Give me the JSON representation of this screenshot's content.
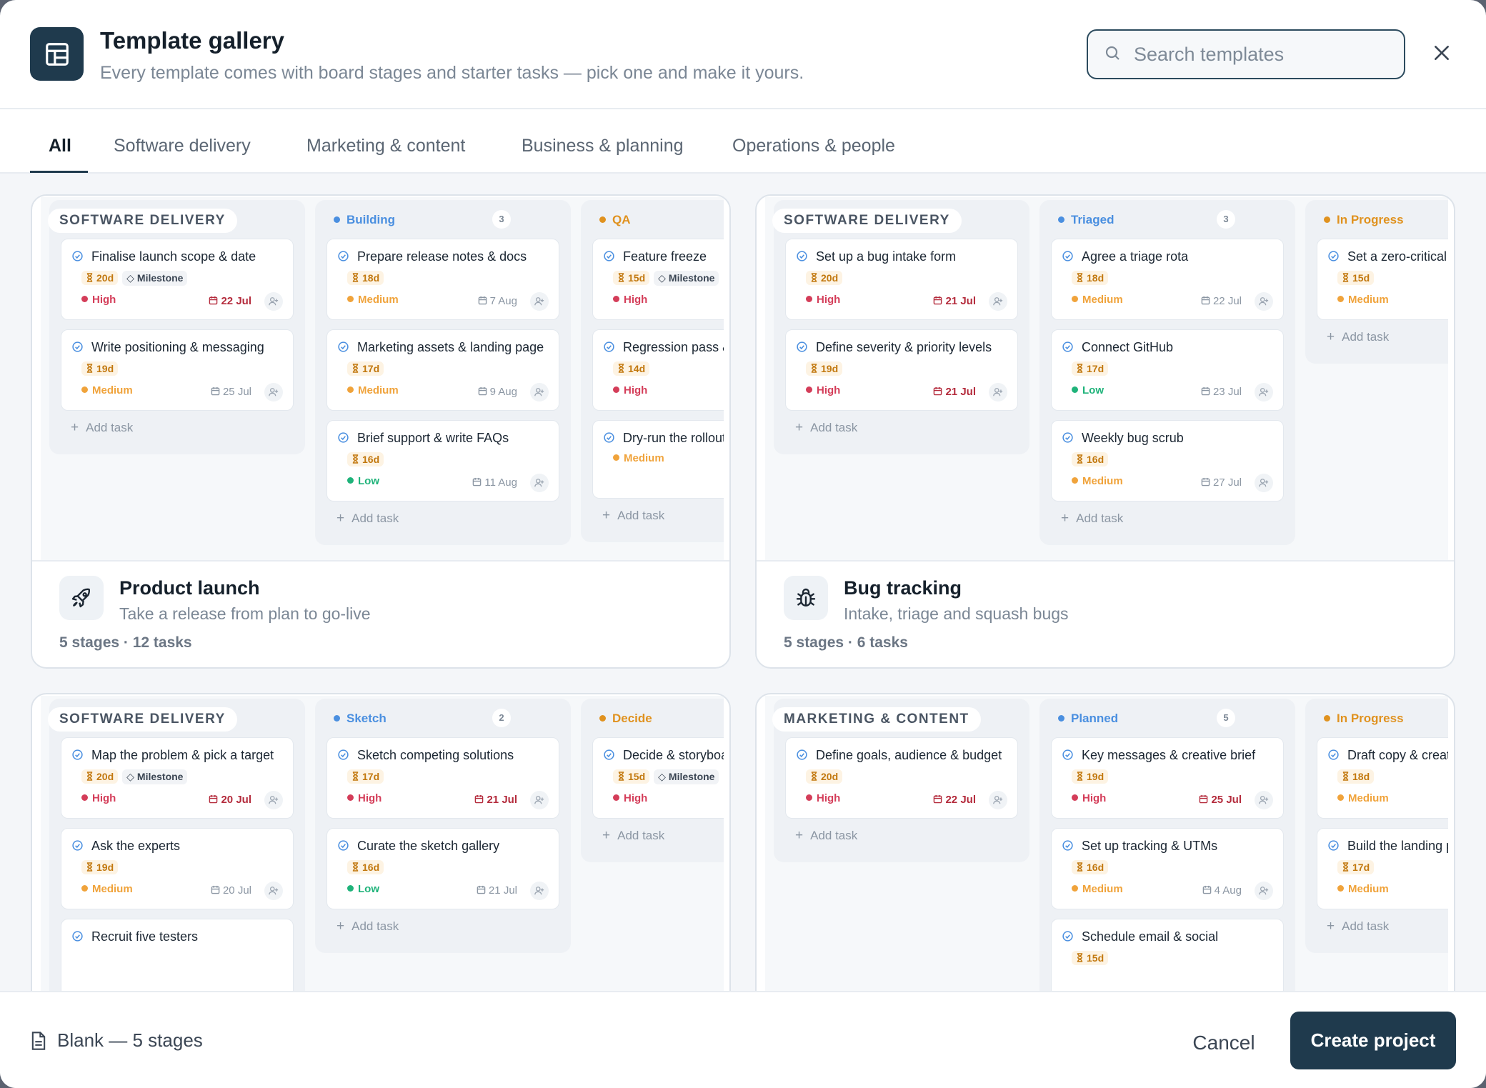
{
  "header": {
    "title": "Template gallery",
    "subtitle": "Every template comes with board stages and starter tasks — pick one and make it yours.",
    "search_placeholder": "Search templates"
  },
  "tabs": [
    "All",
    "Software delivery",
    "Marketing & content",
    "Business & planning",
    "Operations & people"
  ],
  "colors": {
    "accent": "#1f3a4d",
    "high": "#d43d59",
    "medium": "#f0a33b",
    "low": "#1fb37a",
    "blue": "#4a8fe0"
  },
  "add_task_label": "Add task",
  "templates": [
    {
      "category": "SOFTWARE DELIVERY",
      "name": "Product launch",
      "desc": "Take a release from plan to go-live",
      "meta": "5 stages · 12 tasks",
      "icon": "rocket-icon",
      "columns": [
        {
          "title": "",
          "count": "",
          "cards": [
            {
              "title": "Finalise launch scope & date",
              "dur": "20d",
              "milestone": "Milestone",
              "prio": "High",
              "due": "22 Jul"
            },
            {
              "title": "Write positioning & messaging",
              "dur": "19d",
              "prio": "Medium",
              "due": "25 Jul"
            }
          ]
        },
        {
          "title": "Building",
          "count": "3",
          "cards": [
            {
              "title": "Prepare release notes & docs",
              "dur": "18d",
              "prio": "Medium",
              "due": "7 Aug"
            },
            {
              "title": "Marketing assets & landing page",
              "dur": "17d",
              "prio": "Medium",
              "due": "9 Aug"
            },
            {
              "title": "Brief support & write FAQs",
              "dur": "16d",
              "prio": "Low",
              "due": "11 Aug"
            }
          ]
        },
        {
          "title": "QA",
          "count": "",
          "cards": [
            {
              "title": "Feature freeze",
              "dur": "15d",
              "milestone": "Milestone",
              "prio": "High",
              "due": ""
            },
            {
              "title": "Regression pass &",
              "dur": "14d",
              "prio": "High",
              "due": ""
            },
            {
              "title": "Dry-run the rollout",
              "dur": "",
              "prio": "Medium",
              "due": ""
            }
          ]
        }
      ]
    },
    {
      "category": "SOFTWARE DELIVERY",
      "name": "Bug tracking",
      "desc": "Intake, triage and squash bugs",
      "meta": "5 stages · 6 tasks",
      "icon": "bug-icon",
      "columns": [
        {
          "title": "",
          "count": "",
          "cards": [
            {
              "title": "Set up a bug intake form",
              "dur": "20d",
              "prio": "High",
              "due": "21 Jul"
            },
            {
              "title": "Define severity & priority levels",
              "dur": "19d",
              "prio": "High",
              "due": "21 Jul"
            }
          ]
        },
        {
          "title": "Triaged",
          "count": "3",
          "cards": [
            {
              "title": "Agree a triage rota",
              "dur": "18d",
              "prio": "Medium",
              "due": "22 Jul"
            },
            {
              "title": "Connect GitHub",
              "dur": "17d",
              "prio": "Low",
              "due": "23 Jul"
            },
            {
              "title": "Weekly bug scrub",
              "dur": "16d",
              "prio": "Medium",
              "due": "27 Jul"
            }
          ]
        },
        {
          "title": "In Progress",
          "count": "",
          "cards": [
            {
              "title": "Set a zero-critical g",
              "dur": "15d",
              "prio": "Medium",
              "due": ""
            }
          ]
        }
      ]
    },
    {
      "category": "SOFTWARE DELIVERY",
      "name": "",
      "desc": "",
      "meta": "",
      "icon": "",
      "columns": [
        {
          "title": "",
          "count": "",
          "cards": [
            {
              "title": "Map the problem & pick a target",
              "dur": "20d",
              "milestone": "Milestone",
              "prio": "High",
              "due": "20 Jul"
            },
            {
              "title": "Ask the experts",
              "dur": "19d",
              "prio": "Medium",
              "due": "20 Jul"
            },
            {
              "title": "Recruit five testers",
              "dur": "",
              "prio": "",
              "due": ""
            }
          ]
        },
        {
          "title": "Sketch",
          "count": "2",
          "cards": [
            {
              "title": "Sketch competing solutions",
              "dur": "17d",
              "prio": "High",
              "due": "21 Jul"
            },
            {
              "title": "Curate the sketch gallery",
              "dur": "16d",
              "prio": "Low",
              "due": "21 Jul"
            }
          ]
        },
        {
          "title": "Decide",
          "count": "",
          "cards": [
            {
              "title": "Decide & storyboar",
              "dur": "15d",
              "milestone": "Milestone",
              "prio": "High",
              "due": ""
            }
          ]
        }
      ]
    },
    {
      "category": "MARKETING & CONTENT",
      "name": "",
      "desc": "",
      "meta": "",
      "icon": "",
      "columns": [
        {
          "title": "",
          "count": "",
          "cards": [
            {
              "title": "Define goals, audience & budget",
              "dur": "20d",
              "prio": "High",
              "due": "22 Jul"
            }
          ]
        },
        {
          "title": "Planned",
          "count": "5",
          "cards": [
            {
              "title": "Key messages & creative brief",
              "dur": "19d",
              "prio": "High",
              "due": "25 Jul"
            },
            {
              "title": "Set up tracking & UTMs",
              "dur": "16d",
              "prio": "Medium",
              "due": "4 Aug"
            },
            {
              "title": "Schedule email & social",
              "dur": "15d",
              "prio": "",
              "due": ""
            }
          ]
        },
        {
          "title": "In Progress",
          "count": "",
          "cards": [
            {
              "title": "Draft copy & creati",
              "dur": "18d",
              "prio": "Medium",
              "due": ""
            },
            {
              "title": "Build the landing pa",
              "dur": "17d",
              "prio": "Medium",
              "due": ""
            }
          ]
        }
      ]
    }
  ],
  "footer": {
    "blank_label": "Blank — 5 stages",
    "cancel": "Cancel",
    "create": "Create project"
  }
}
